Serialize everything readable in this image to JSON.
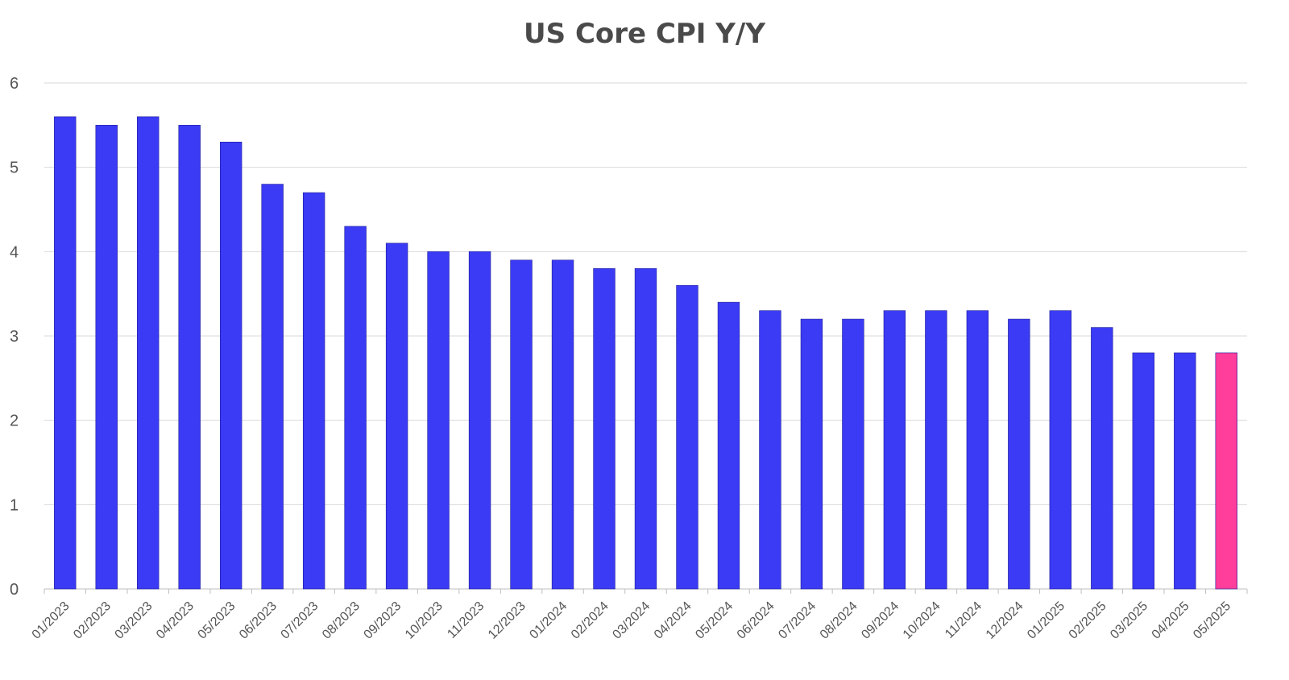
{
  "chart_data": {
    "type": "bar",
    "title": "US Core CPI Y/Y",
    "xlabel": "",
    "ylabel": "",
    "ylim": [
      0,
      6
    ],
    "yticks": [
      "0",
      "1",
      "2",
      "3",
      "4",
      "5",
      "6"
    ],
    "grid": true,
    "legend": "none",
    "categories": [
      "01/2023",
      "02/2023",
      "03/2023",
      "04/2023",
      "05/2023",
      "06/2023",
      "07/2023",
      "08/2023",
      "09/2023",
      "10/2023",
      "11/2023",
      "12/2023",
      "01/2024",
      "02/2024",
      "03/2024",
      "04/2024",
      "05/2024",
      "06/2024",
      "07/2024",
      "08/2024",
      "09/2024",
      "10/2024",
      "11/2024",
      "12/2024",
      "01/2025",
      "02/2025",
      "03/2025",
      "04/2025",
      "05/2025"
    ],
    "values": [
      5.6,
      5.5,
      5.6,
      5.5,
      5.3,
      4.8,
      4.7,
      4.3,
      4.1,
      4.0,
      4.0,
      3.9,
      3.9,
      3.8,
      3.8,
      3.6,
      3.4,
      3.3,
      3.2,
      3.2,
      3.3,
      3.3,
      3.3,
      3.2,
      3.3,
      3.1,
      2.8,
      2.8,
      2.8
    ],
    "colors": {
      "bar": "#3b3bf5",
      "highlight": "#ff3d9a",
      "highlight_category": "05/2025"
    }
  }
}
